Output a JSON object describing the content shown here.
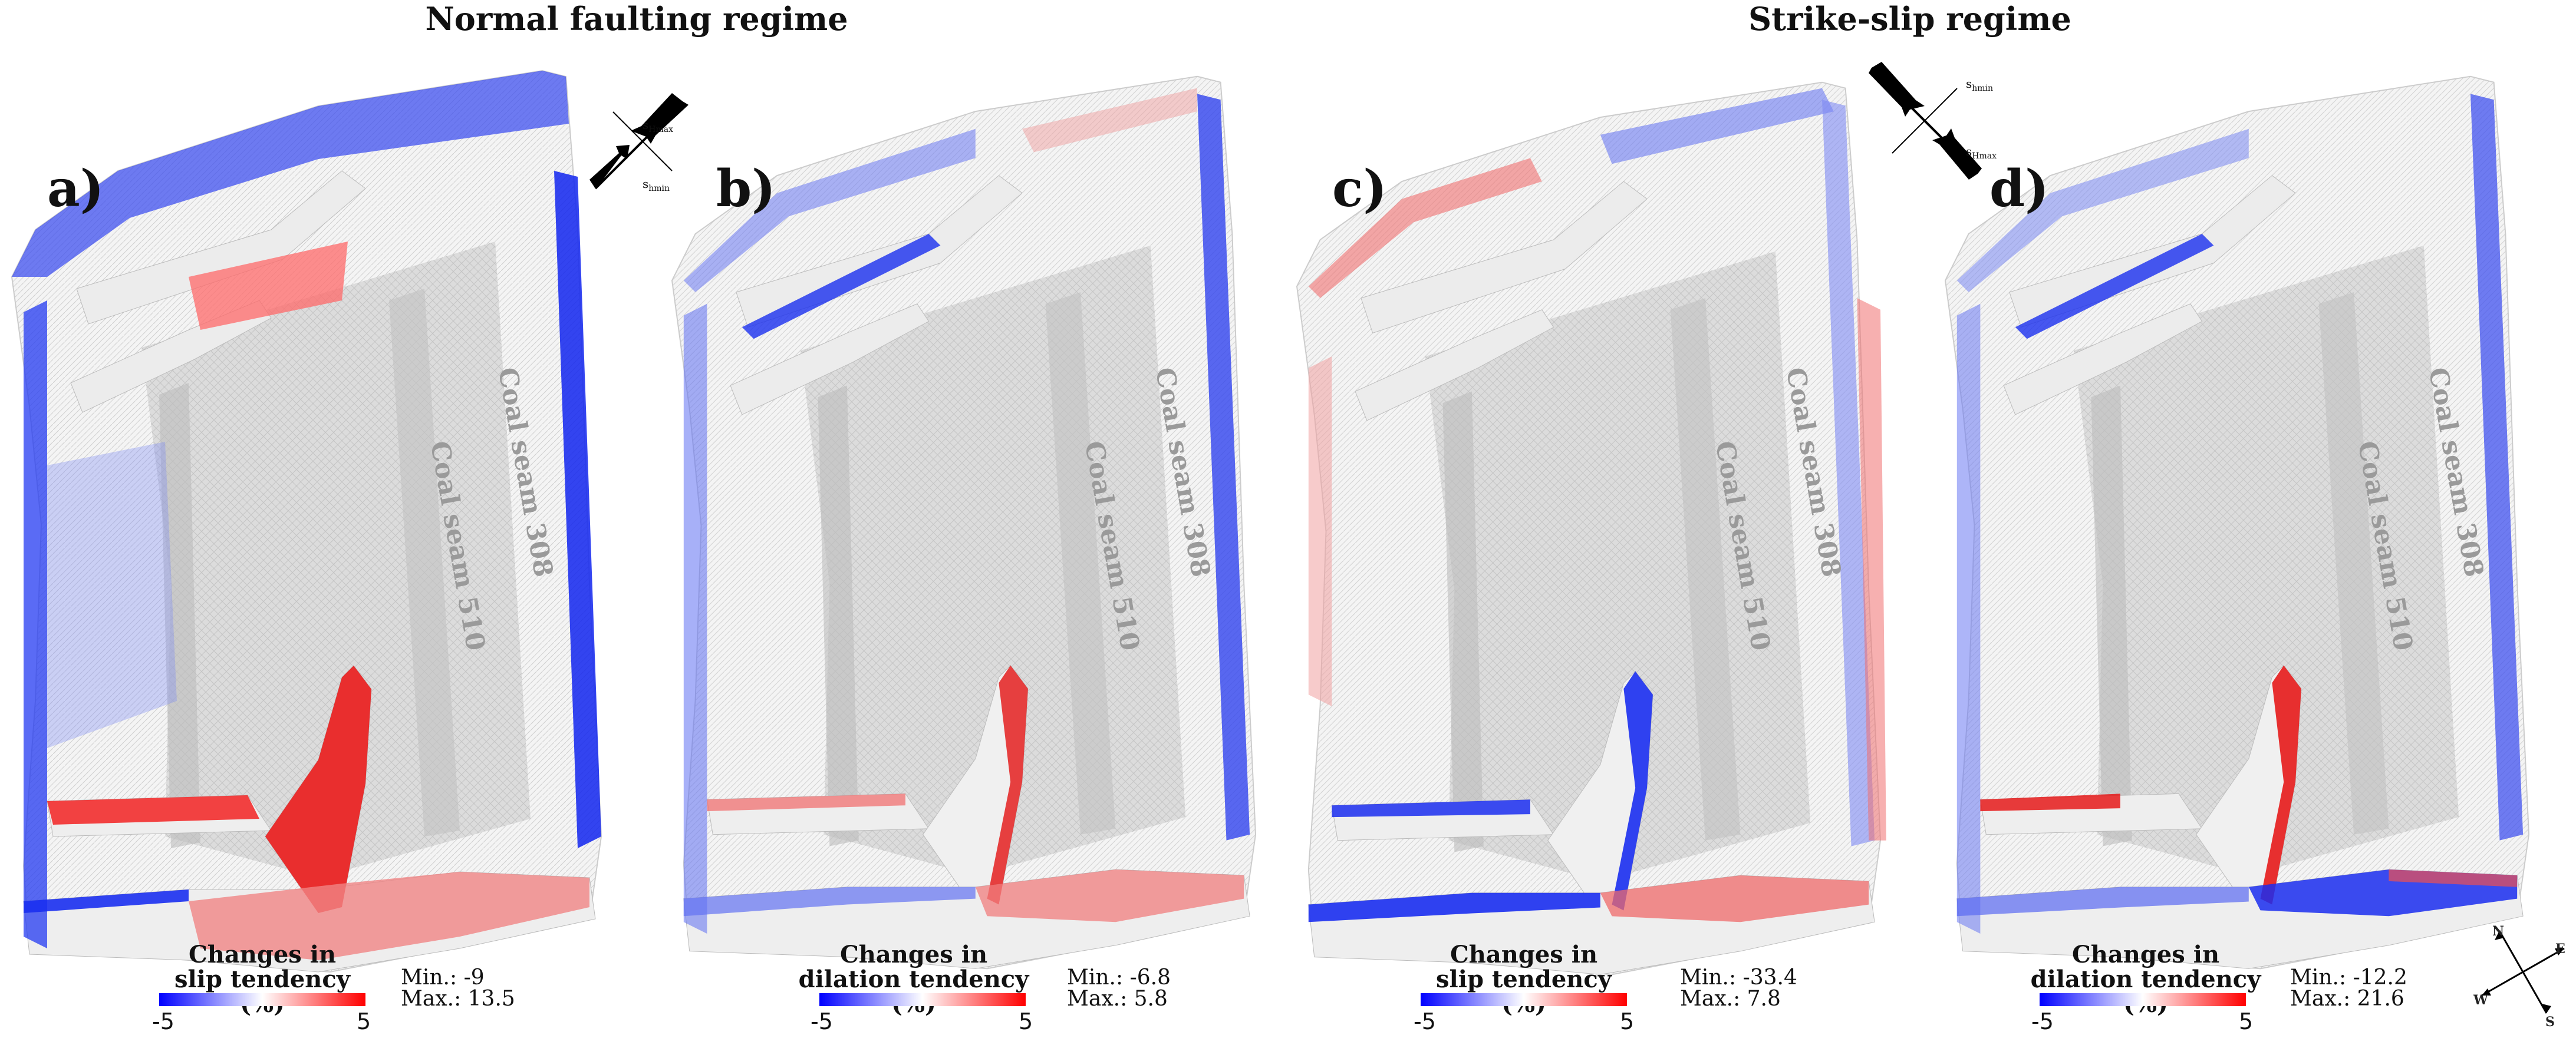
{
  "headings": {
    "normal": "Normal faulting regime",
    "strike_slip": "Strike-slip regime"
  },
  "panels": [
    {
      "letter": "a)",
      "seam_308": "Coal seam 308",
      "seam_510": "Coal seam 510",
      "legend_title_1": "Changes in",
      "legend_title_2": "slip tendency (%)",
      "tick_min": "-5",
      "tick_max": "5",
      "min_text": "Min.: -9",
      "max_text": "Max.: 13.5"
    },
    {
      "letter": "b)",
      "seam_308": "Coal seam 308",
      "seam_510": "Coal seam 510",
      "legend_title_1": "Changes in",
      "legend_title_2": "dilation tendency (%)",
      "tick_min": "-5",
      "tick_max": "5",
      "min_text": "Min.: -6.8",
      "max_text": "Max.: 5.8"
    },
    {
      "letter": "c)",
      "seam_308": "Coal seam 308",
      "seam_510": "Coal seam 510",
      "legend_title_1": "Changes in",
      "legend_title_2": "slip tendency (%)",
      "tick_min": "-5",
      "tick_max": "5",
      "min_text": "Min.: -33.4",
      "max_text": "Max.: 7.8"
    },
    {
      "letter": "d)",
      "seam_308": "Coal seam 308",
      "seam_510": "Coal seam 510",
      "legend_title_1": "Changes in",
      "legend_title_2": "dilation tendency (%)",
      "tick_min": "-5",
      "tick_max": "5",
      "min_text": "Min.: -12.2",
      "max_text": "Max.: 21.6"
    }
  ],
  "stress_symbols": {
    "normal": {
      "label_top": "s",
      "label_top_sub": "Hmax",
      "label_bottom": "s",
      "label_bottom_sub": "hmin"
    },
    "strike_slip": {
      "label_top": "s",
      "label_top_sub": "hmin",
      "label_bottom": "s",
      "label_bottom_sub": "Hmax"
    }
  },
  "compass": {
    "n": "N",
    "e": "E",
    "s": "S",
    "w": "W"
  },
  "colors": {
    "negative": "#0000ff",
    "neutral": "#ffffff",
    "positive": "#ff0000",
    "mesh_grey": "#cfcfcf"
  }
}
